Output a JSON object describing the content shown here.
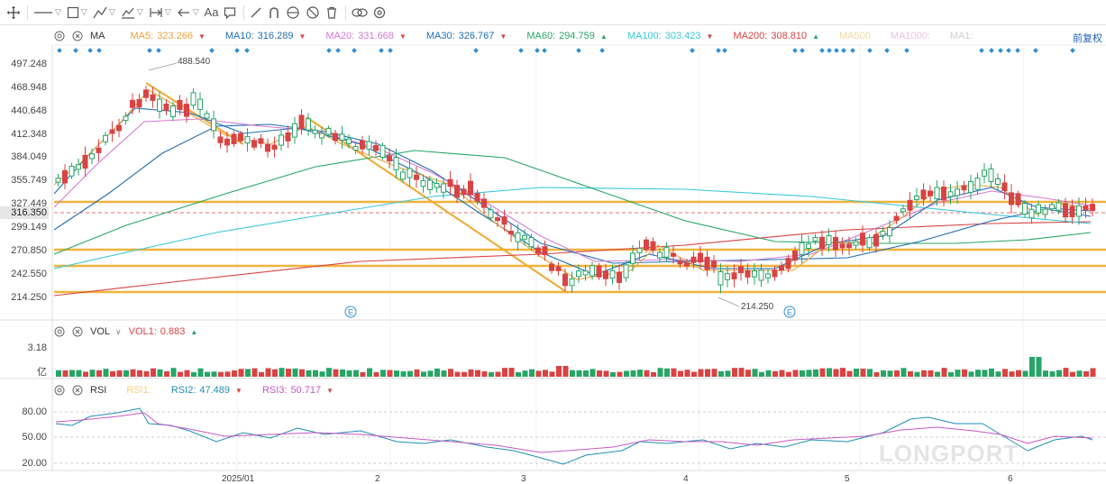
{
  "toolbar": {
    "icons": [
      "crosshair-icon",
      "line-icon",
      "rect-icon",
      "measure-icon",
      "pattern-icon",
      "range-icon",
      "arrow-icon",
      "text-icon",
      "comment-icon",
      "pen-icon",
      "magnet-icon",
      "eye-icon",
      "hide-icon",
      "trash-icon",
      "link-icon",
      "settings-icon"
    ],
    "text_tool": "Aa"
  },
  "ma_legend": {
    "name": "MA",
    "items": [
      {
        "label": "MA5:",
        "value": "323.266",
        "color": "#e8a33c",
        "arrow": "▼",
        "arrow_color": "#d94343"
      },
      {
        "label": "MA10:",
        "value": "316.289",
        "color": "#1f6fb2",
        "arrow": "▼",
        "arrow_color": "#d94343"
      },
      {
        "label": "MA20:",
        "value": "331.668",
        "color": "#d479d4",
        "arrow": "▼",
        "arrow_color": "#d94343"
      },
      {
        "label": "MA30:",
        "value": "326.767",
        "color": "#1f6fb2",
        "arrow": "▼",
        "arrow_color": "#d94343"
      },
      {
        "label": "MA60:",
        "value": "294.759",
        "color": "#27a567",
        "arrow": "▲",
        "arrow_color": "#27a567"
      },
      {
        "label": "MA100:",
        "value": "303.423",
        "color": "#36c7d9",
        "arrow": "▼",
        "arrow_color": "#d94343"
      },
      {
        "label": "MA200:",
        "value": "308.810",
        "color": "#d94343",
        "arrow": "▲",
        "arrow_color": "#27a567"
      },
      {
        "label": "MA500",
        "value": "",
        "color": "#f3d9a0",
        "arrow": "",
        "arrow_color": ""
      },
      {
        "label": "MA1000:",
        "value": "",
        "color": "#e9c3e9",
        "arrow": "",
        "arrow_color": ""
      },
      {
        "label": "MA1:",
        "value": "",
        "color": "#cfcfcf",
        "arrow": "",
        "arrow_color": ""
      }
    ],
    "adjust": "前复权"
  },
  "price_axis": [
    "497.248",
    "468.948",
    "440.648",
    "412.348",
    "384.049",
    "355.749",
    "327.449",
    "299.149",
    "270.850",
    "242.550",
    "214.250"
  ],
  "current_price": "316.350",
  "annotations": {
    "high": "488.540",
    "low": "214.250",
    "event_marker": "E"
  },
  "vol_legend": {
    "name": "VOL",
    "item_label": "VOL1:",
    "item_value": "0.883",
    "arrow": "▲"
  },
  "vol_axis": {
    "top": "3.18",
    "unit": "亿"
  },
  "rsi_legend": {
    "name": "RSI",
    "items": [
      {
        "label": "RSI1:",
        "value": "",
        "color": "#f3d27a",
        "arrow": "",
        "arrow_color": ""
      },
      {
        "label": "RSI2:",
        "value": "47.489",
        "color": "#1f8fb2",
        "arrow": "▼",
        "arrow_color": "#d94343"
      },
      {
        "label": "RSI3:",
        "value": "50.717",
        "color": "#c45ac4",
        "arrow": "▼",
        "arrow_color": "#d94343"
      }
    ]
  },
  "rsi_axis": [
    "80.00",
    "50.00",
    "20.00"
  ],
  "x_axis": [
    "2025/01",
    "2",
    "3",
    "4",
    "5",
    "6"
  ],
  "watermark": "LONGPORT",
  "colors": {
    "up": "#27a567",
    "down": "#d94343",
    "support": "#f0b43c",
    "trend": "#f0a830"
  }
}
